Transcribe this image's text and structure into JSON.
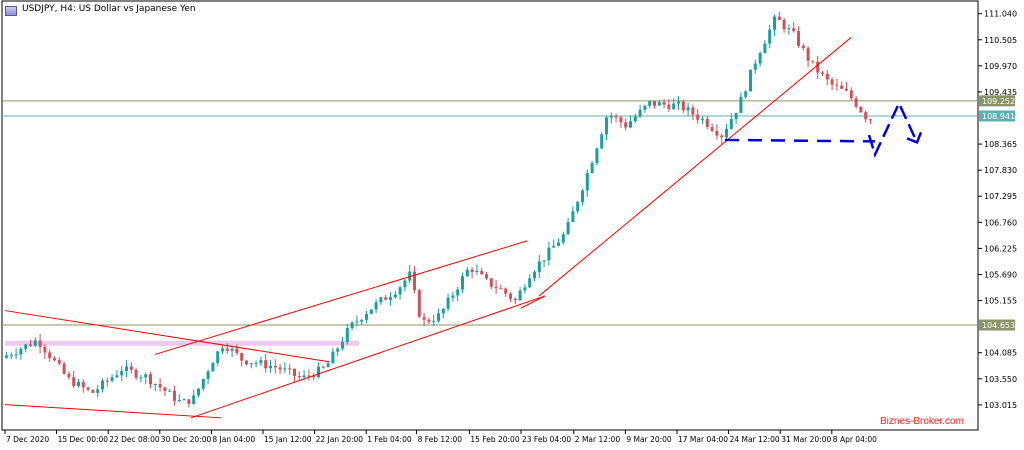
{
  "window": {
    "title": "USDJPY, H4:  US Dollar vs Japanese Yen"
  },
  "watermark": "Biznes-Broker.com",
  "colors": {
    "up": "#1a9e9e",
    "down": "#d0505c",
    "trendline": "#ff0000",
    "forecast": "#0000dd",
    "hline_green": "#8a9468",
    "hline_cyan": "#5fb0b0",
    "zone": "#f0c8f0",
    "axis": "#000000",
    "watermark": "#ff2020"
  },
  "chart_data": {
    "type": "candlestick",
    "symbol": "USDJPY",
    "timeframe": "H4",
    "y_ticks": [
      "111.040",
      "110.505",
      "109.970",
      "109.435",
      "108.365",
      "107.830",
      "107.295",
      "106.760",
      "106.225",
      "105.690",
      "105.155",
      "104.085",
      "103.550",
      "103.015"
    ],
    "ylim": [
      102.5,
      111.3
    ],
    "x_ticks": [
      {
        "label": "7 Dec 2020",
        "bar": 0
      },
      {
        "label": "15 Dec 00:00",
        "bar": 43
      },
      {
        "label": "22 Dec 08:00",
        "bar": 86
      },
      {
        "label": "30 Dec 20:00",
        "bar": 129
      },
      {
        "label": "8 Jan 04:00",
        "bar": 172
      },
      {
        "label": "15 Jan 12:00",
        "bar": 215
      },
      {
        "label": "22 Jan 20:00",
        "bar": 258
      },
      {
        "label": "1 Feb 04:00",
        "bar": 301
      },
      {
        "label": "8 Feb 12:00",
        "bar": 343
      },
      {
        "label": "15 Feb 20:00",
        "bar": 387
      },
      {
        "label": "23 Feb 04:00",
        "bar": 430
      },
      {
        "label": "2 Mar 12:00",
        "bar": 474
      },
      {
        "label": "9 Mar 20:00",
        "bar": 517
      },
      {
        "label": "17 Mar 04:00",
        "bar": 560
      },
      {
        "label": "24 Mar 12:00",
        "bar": 603
      },
      {
        "label": "31 Mar 20:00",
        "bar": 646
      },
      {
        "label": "8 Apr 04:00",
        "bar": 689
      }
    ],
    "bar_count": 722,
    "close_keypoints": [
      [
        0,
        103.98
      ],
      [
        30,
        104.35
      ],
      [
        55,
        103.55
      ],
      [
        75,
        103.25
      ],
      [
        100,
        103.75
      ],
      [
        120,
        103.6
      ],
      [
        150,
        103.05
      ],
      [
        160,
        103.15
      ],
      [
        175,
        103.9
      ],
      [
        185,
        104.28
      ],
      [
        200,
        103.95
      ],
      [
        230,
        103.78
      ],
      [
        250,
        103.55
      ],
      [
        270,
        103.78
      ],
      [
        290,
        104.6
      ],
      [
        305,
        104.95
      ],
      [
        330,
        105.4
      ],
      [
        340,
        105.68
      ],
      [
        350,
        104.7
      ],
      [
        365,
        104.85
      ],
      [
        390,
        105.85
      ],
      [
        405,
        105.52
      ],
      [
        415,
        105.4
      ],
      [
        428,
        105.15
      ],
      [
        440,
        105.7
      ],
      [
        470,
        106.55
      ],
      [
        490,
        107.9
      ],
      [
        505,
        109.0
      ],
      [
        520,
        108.75
      ],
      [
        540,
        109.2
      ],
      [
        565,
        109.15
      ],
      [
        585,
        108.85
      ],
      [
        600,
        108.55
      ],
      [
        615,
        109.2
      ],
      [
        630,
        110.2
      ],
      [
        645,
        110.95
      ],
      [
        660,
        110.6
      ],
      [
        675,
        110.0
      ],
      [
        690,
        109.6
      ],
      [
        705,
        109.4
      ],
      [
        715,
        109.1
      ],
      [
        721,
        108.9
      ]
    ],
    "horizontal_levels": [
      {
        "price": 109.252,
        "label": "109.252",
        "style": "green"
      },
      {
        "price": 108.941,
        "label": "108.941",
        "style": "cyan"
      },
      {
        "price": 104.653,
        "label": "104.653",
        "style": "green"
      }
    ],
    "highlight_zone": {
      "bar_start": 0,
      "bar_end": 295,
      "price": 104.28
    },
    "trendlines": [
      {
        "bar1": 0,
        "p1": 104.95,
        "bar2": 270,
        "p2": 103.9
      },
      {
        "bar1": 0,
        "p1": 103.02,
        "bar2": 180,
        "p2": 102.75
      },
      {
        "bar1": 125,
        "p1": 104.05,
        "bar2": 435,
        "p2": 106.38
      },
      {
        "bar1": 155,
        "p1": 102.75,
        "bar2": 450,
        "p2": 105.25
      },
      {
        "bar1": 430,
        "p1": 105.0,
        "bar2": 450,
        "p2": 105.25
      },
      {
        "bar1": 445,
        "p1": 105.25,
        "bar2": 705,
        "p2": 110.55
      }
    ],
    "forecast_path": {
      "dashed": [
        [
          600,
          108.45
        ],
        [
          725,
          108.42
        ]
      ],
      "zigzag": [
        [
          725,
          108.15
        ],
        [
          745,
          109.2
        ],
        [
          760,
          108.4
        ]
      ]
    }
  }
}
